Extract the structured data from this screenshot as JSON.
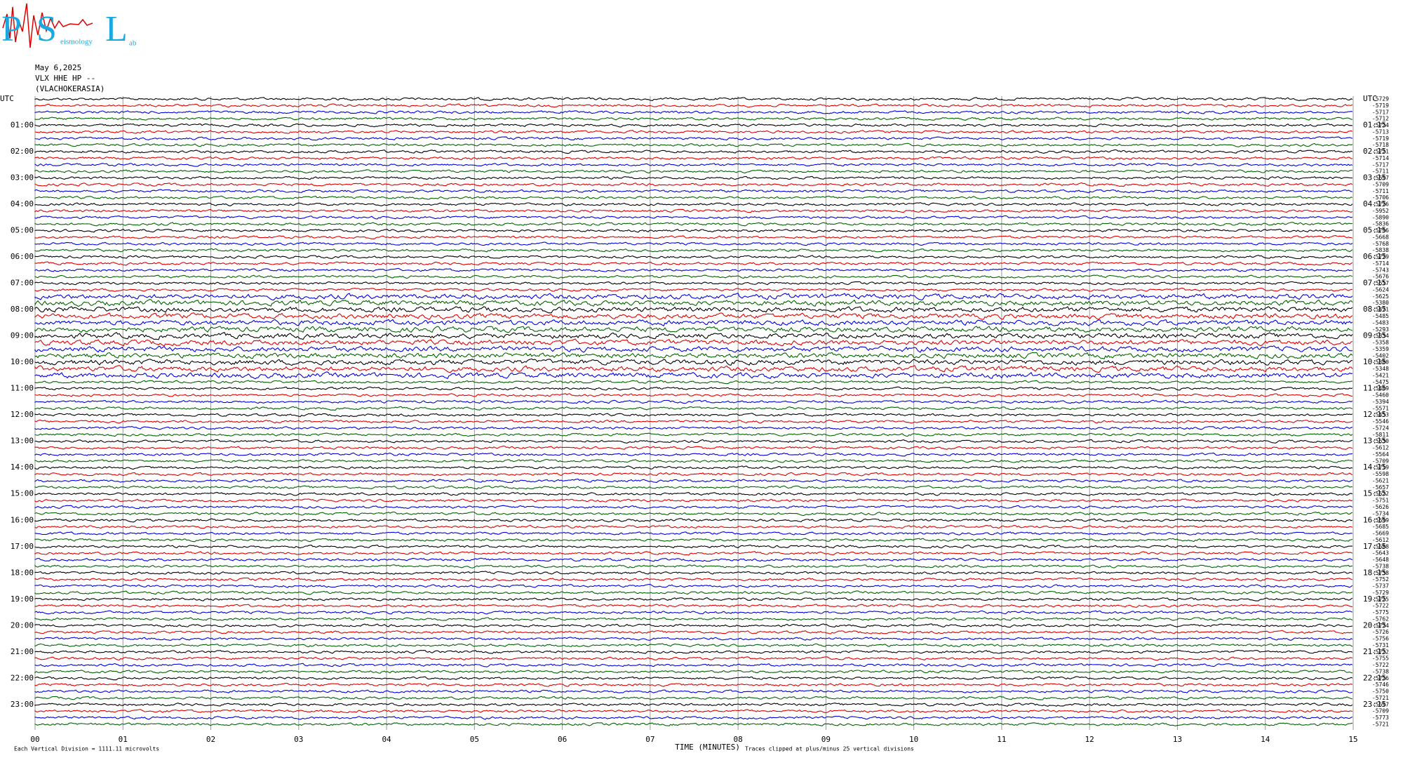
{
  "logo": {
    "letters": [
      "P",
      "S",
      "L"
    ],
    "words": [
      "eismology",
      "ab"
    ]
  },
  "header": {
    "date": "May 6,2025",
    "station": "VLX HHE HP --",
    "site": "(VLACHOKERASIA)"
  },
  "left_labels": [
    "UTC",
    "01:00",
    "02:00",
    "03:00",
    "04:00",
    "05:00",
    "06:00",
    "07:00",
    "08:00",
    "09:00",
    "10:00",
    "11:00",
    "12:00",
    "13:00",
    "14:00",
    "15:00",
    "16:00",
    "17:00",
    "18:00",
    "19:00",
    "20:00",
    "21:00",
    "22:00",
    "23:00"
  ],
  "right_labels": [
    "UTC",
    "01:15",
    "02:15",
    "03:15",
    "04:15",
    "05:15",
    "06:15",
    "07:15",
    "08:15",
    "09:15",
    "10:15",
    "11:15",
    "12:15",
    "13:15",
    "14:15",
    "15:15",
    "16:15",
    "17:15",
    "18:15",
    "19:15",
    "20:15",
    "21:15",
    "22:15",
    "23:15"
  ],
  "trace_offsets": [
    -5729,
    -5719,
    -5717,
    -5712,
    -5724,
    -5713,
    -5719,
    -5718,
    -5721,
    -5714,
    -5717,
    -5711,
    -5697,
    -5709,
    -5711,
    -5706,
    -5776,
    -5952,
    -5890,
    -5836,
    -5796,
    -5668,
    -5768,
    -5838,
    -5779,
    -5714,
    -5743,
    -5676,
    -5617,
    -5624,
    -5625,
    -5380,
    -5471,
    -5485,
    -5483,
    -5293,
    -5334,
    -5358,
    -5359,
    -5402,
    -5380,
    -5348,
    -5421,
    -5475,
    -5409,
    -5460,
    -5394,
    -5571,
    -5453,
    -5546,
    -5724,
    -5811,
    -5630,
    -5612,
    -5564,
    -5709,
    -5719,
    -5598,
    -5621,
    -5657,
    -5622,
    -5751,
    -5626,
    -5734,
    -5699,
    -5685,
    -5669,
    -5612,
    -5688,
    -5643,
    -5648,
    -5738,
    -5738,
    -5752,
    -5737,
    -5729,
    -5725,
    -5722,
    -5775,
    -5762,
    -5774,
    -5726,
    -5756,
    -5731,
    -5722,
    -5755,
    -5722,
    -5738,
    -5726,
    -5746,
    -5750,
    -5721,
    -5697,
    -5709,
    -5773,
    -5721
  ],
  "trace_colors": [
    "#000000",
    "#e00000",
    "#0000e0",
    "#006400"
  ],
  "x_ticks": [
    "00",
    "01",
    "02",
    "03",
    "04",
    "05",
    "06",
    "07",
    "08",
    "09",
    "10",
    "11",
    "12",
    "13",
    "14",
    "15"
  ],
  "footer": {
    "scale": "Each Vertical Division = 1111.11 microvolts",
    "axis": "TIME (MINUTES)",
    "clip": "Traces clipped at plus/minus 25 vertical divisions"
  }
}
